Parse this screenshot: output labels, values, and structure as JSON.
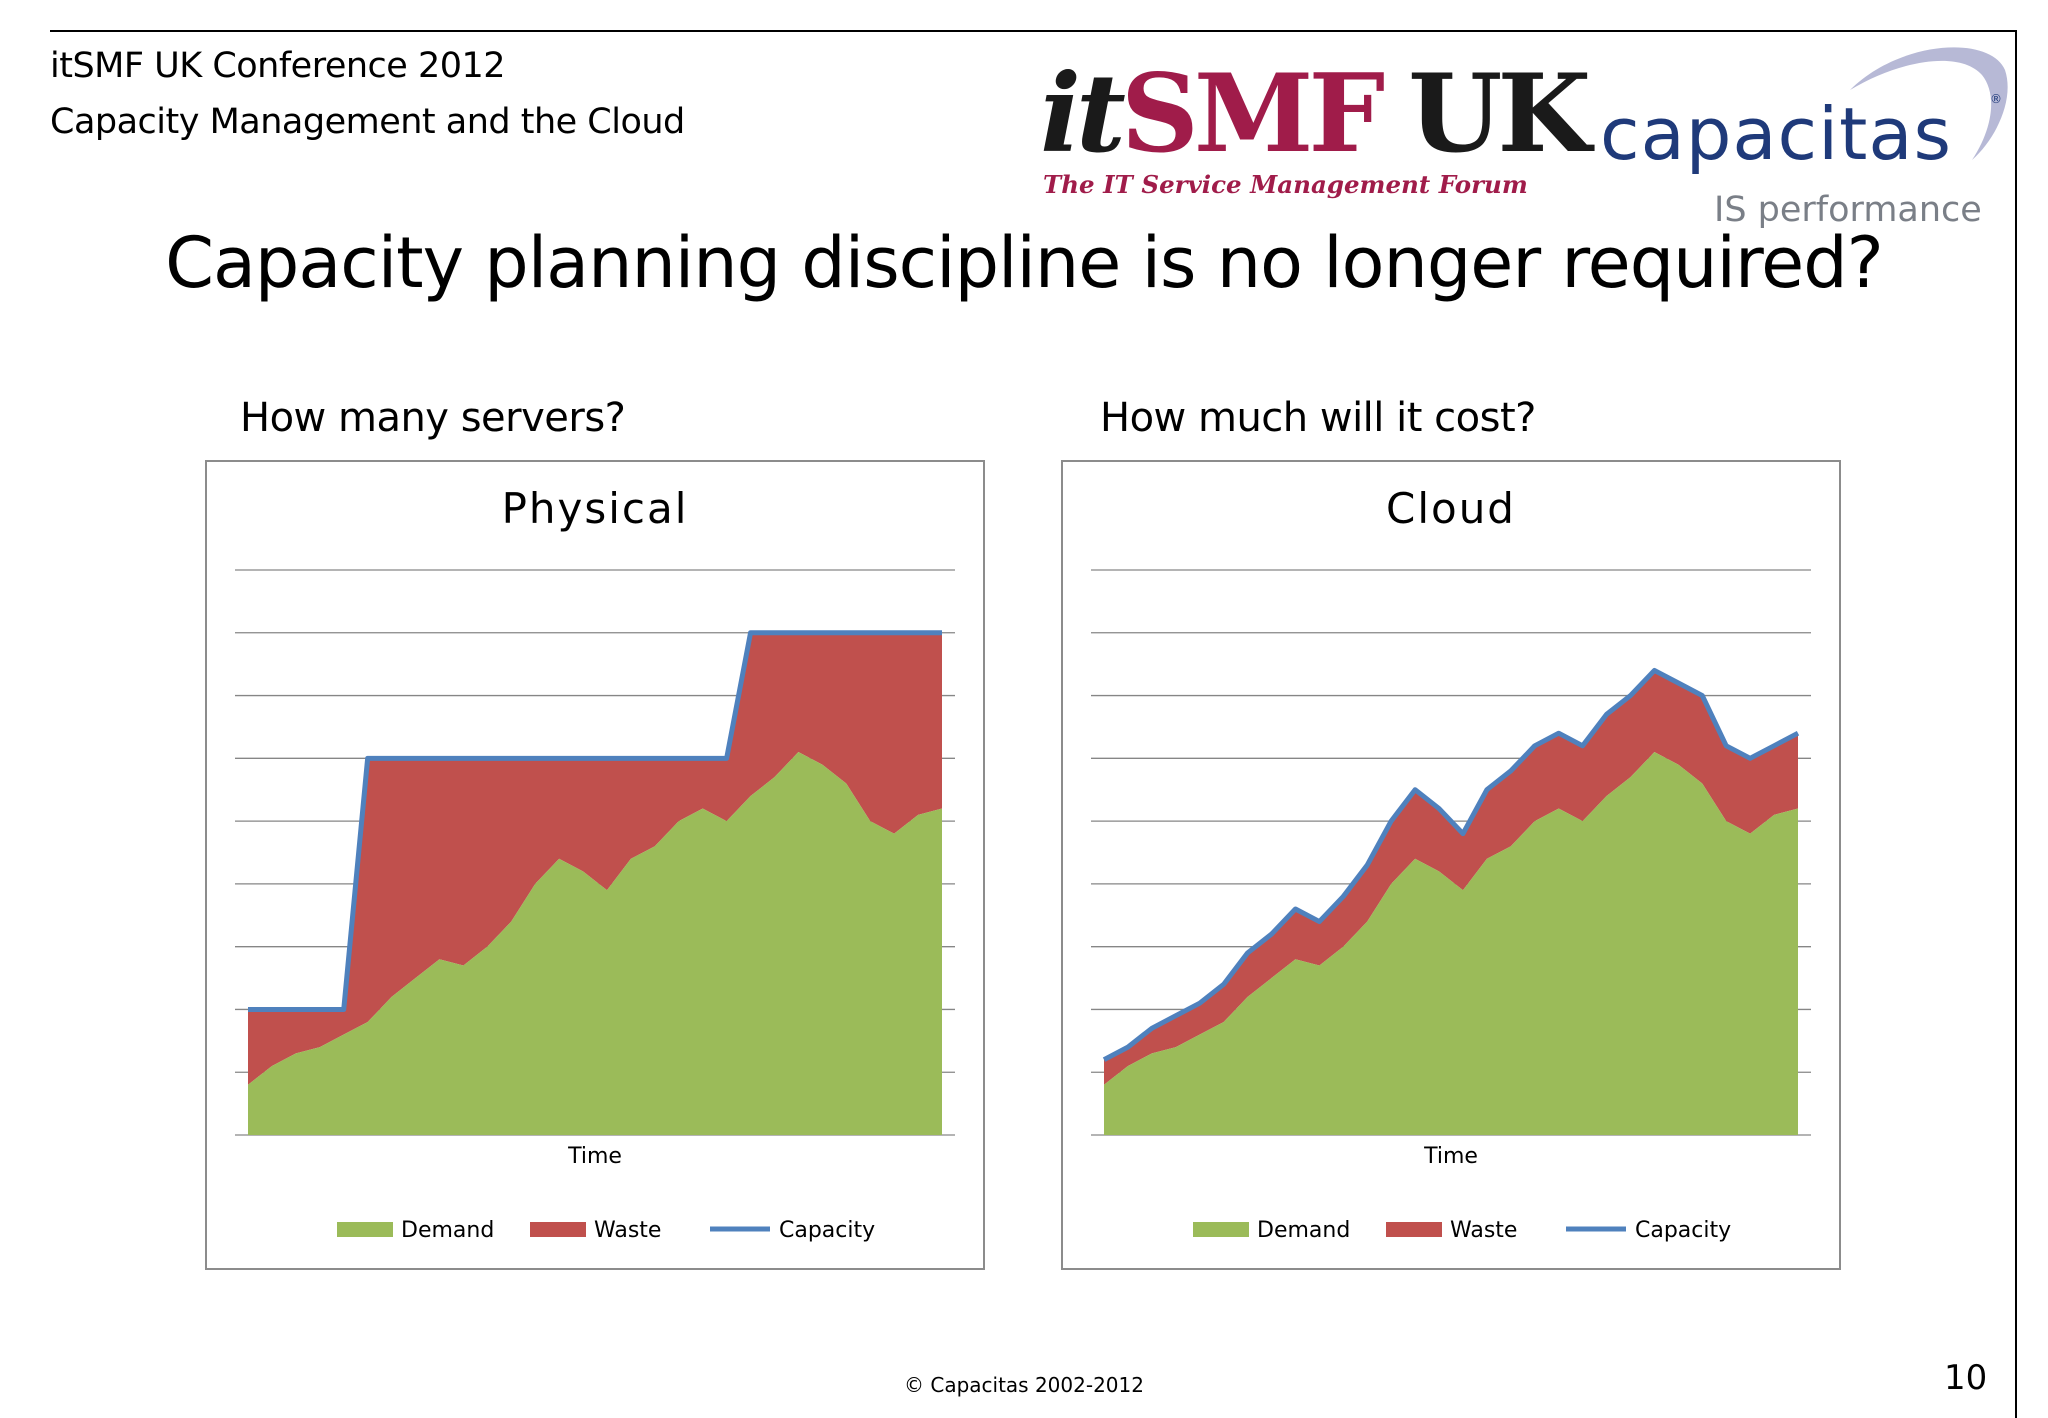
{
  "header": {
    "line1": "itSMF UK Conference 2012",
    "line2": "Capacity Management and the Cloud"
  },
  "logos": {
    "itsmf": {
      "part1": "it",
      "part2": "SMF",
      "part3": "UK",
      "tagline": "The IT Service Management Forum",
      "color_primary": "#a01c4a",
      "color_dark": "#1a1a1a"
    },
    "capacitas": {
      "name": "capacitas",
      "registered": "®",
      "tagline": "IS performance",
      "color_primary": "#1f3a7a",
      "color_sub": "#7a7f87"
    }
  },
  "slide": {
    "title": "Capacity planning discipline is no longer required?",
    "left_question": "How many servers?",
    "right_question": "How much will it cost?"
  },
  "colors": {
    "demand": "#9bbb59",
    "waste": "#c0504d",
    "capacity": "#4f81bd",
    "gridline": "#868686",
    "border": "#8c8c8c"
  },
  "chart_data": [
    {
      "type": "area",
      "title": "Physical",
      "xlabel": "Time",
      "ylabel": "",
      "ylim": [
        0,
        9
      ],
      "grid": true,
      "legend": "bottom",
      "x": [
        1,
        2,
        3,
        4,
        5,
        6,
        7,
        8,
        9,
        10,
        11,
        12,
        13,
        14,
        15,
        16,
        17,
        18,
        19,
        20,
        21,
        22,
        23,
        24,
        25,
        26,
        27,
        28,
        29,
        30
      ],
      "series": [
        {
          "name": "Demand",
          "kind": "area",
          "values": [
            0.8,
            1.1,
            1.3,
            1.4,
            1.6,
            1.8,
            2.2,
            2.5,
            2.8,
            2.7,
            3.0,
            3.4,
            4.0,
            4.4,
            4.2,
            3.9,
            4.4,
            4.6,
            5.0,
            5.2,
            5.0,
            5.4,
            5.7,
            6.1,
            5.9,
            5.6,
            5.0,
            4.8,
            5.1,
            5.2
          ]
        },
        {
          "name": "Waste",
          "kind": "area",
          "values": [
            1.2,
            0.9,
            0.7,
            0.6,
            0.4,
            4.2,
            3.8,
            3.5,
            3.2,
            3.3,
            3.0,
            2.6,
            2.0,
            1.6,
            1.8,
            2.1,
            1.6,
            1.4,
            1.0,
            0.8,
            1.0,
            2.6,
            2.3,
            1.9,
            2.1,
            2.4,
            3.0,
            3.2,
            2.9,
            2.8
          ]
        },
        {
          "name": "Capacity",
          "kind": "line",
          "values": [
            2,
            2,
            2,
            2,
            2,
            6,
            6,
            6,
            6,
            6,
            6,
            6,
            6,
            6,
            6,
            6,
            6,
            6,
            6,
            6,
            6,
            8,
            8,
            8,
            8,
            8,
            8,
            8,
            8,
            8
          ]
        }
      ]
    },
    {
      "type": "area",
      "title": "Cloud",
      "xlabel": "Time",
      "ylabel": "",
      "ylim": [
        0,
        9
      ],
      "grid": true,
      "legend": "bottom",
      "x": [
        1,
        2,
        3,
        4,
        5,
        6,
        7,
        8,
        9,
        10,
        11,
        12,
        13,
        14,
        15,
        16,
        17,
        18,
        19,
        20,
        21,
        22,
        23,
        24,
        25,
        26,
        27,
        28,
        29,
        30
      ],
      "series": [
        {
          "name": "Demand",
          "kind": "area",
          "values": [
            0.8,
            1.1,
            1.3,
            1.4,
            1.6,
            1.8,
            2.2,
            2.5,
            2.8,
            2.7,
            3.0,
            3.4,
            4.0,
            4.4,
            4.2,
            3.9,
            4.4,
            4.6,
            5.0,
            5.2,
            5.0,
            5.4,
            5.7,
            6.1,
            5.9,
            5.6,
            5.0,
            4.8,
            5.1,
            5.2
          ]
        },
        {
          "name": "Waste",
          "kind": "area",
          "values": [
            0.4,
            0.3,
            0.4,
            0.5,
            0.5,
            0.6,
            0.7,
            0.7,
            0.8,
            0.7,
            0.8,
            0.9,
            1.0,
            1.1,
            1.0,
            0.9,
            1.1,
            1.2,
            1.2,
            1.2,
            1.2,
            1.3,
            1.3,
            1.3,
            1.3,
            1.4,
            1.2,
            1.2,
            1.1,
            1.2
          ]
        },
        {
          "name": "Capacity",
          "kind": "line",
          "values": [
            1.2,
            1.4,
            1.7,
            1.9,
            2.1,
            2.4,
            2.9,
            3.2,
            3.6,
            3.4,
            3.8,
            4.3,
            5.0,
            5.5,
            5.2,
            4.8,
            5.5,
            5.8,
            6.2,
            6.4,
            6.2,
            6.7,
            7.0,
            7.4,
            7.2,
            7.0,
            6.2,
            6.0,
            6.2,
            6.4
          ]
        }
      ]
    }
  ],
  "footer": {
    "copyright": "© Capacitas 2002-2012",
    "page": "10"
  }
}
